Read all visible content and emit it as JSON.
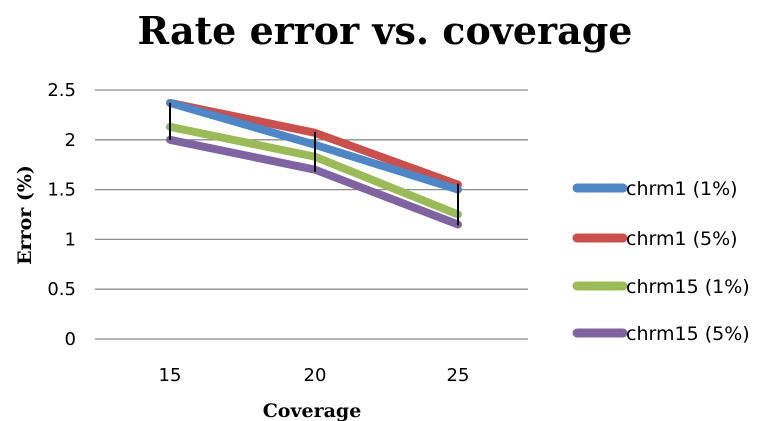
{
  "chart_data": {
    "type": "line",
    "title": "Rate error vs. coverage",
    "xlabel": "Coverage",
    "ylabel": "Error (%)",
    "categories": [
      "15",
      "20",
      "25"
    ],
    "ylim": [
      0,
      2.5
    ],
    "yticks": [
      "0",
      "0.5",
      "1",
      "1.5",
      "2",
      "2.5"
    ],
    "grid": true,
    "legend_position": "right",
    "series": [
      {
        "name": "chrm1 (1%)",
        "values": [
          2.37,
          1.95,
          1.5
        ],
        "color": "#4F86C6"
      },
      {
        "name": "chrm1 (5%)",
        "values": [
          2.37,
          2.07,
          1.55
        ],
        "color": "#C9504C"
      },
      {
        "name": "chrm15 (1%)",
        "values": [
          2.13,
          1.83,
          1.25
        ],
        "color": "#9BBB59"
      },
      {
        "name": "chrm15 (5%)",
        "values": [
          2.0,
          1.7,
          1.15
        ],
        "color": "#8064A2"
      }
    ],
    "error_bars": [
      {
        "x": "15",
        "low": 2.0,
        "high": 2.37
      },
      {
        "x": "20",
        "low": 1.68,
        "high": 2.08
      },
      {
        "x": "25",
        "low": 1.14,
        "high": 1.56
      }
    ]
  }
}
